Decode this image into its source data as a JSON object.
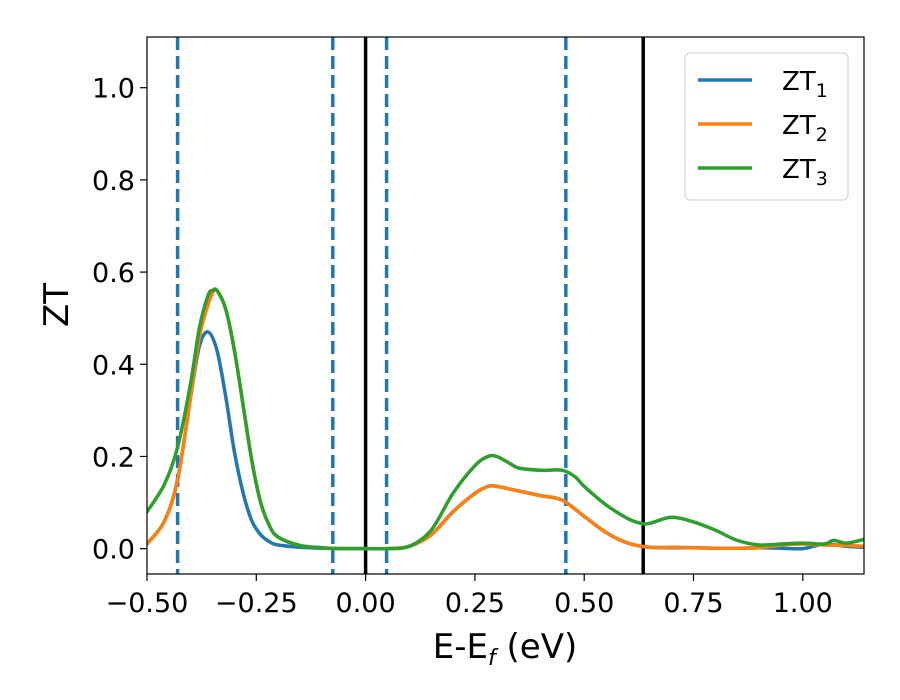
{
  "chart_data": {
    "type": "line",
    "xlabel": "E-E",
    "xlabel_sub": "f",
    "xlabel_unit": " (eV)",
    "ylabel": "ZT",
    "xlim": [
      -0.5,
      1.14
    ],
    "ylim": [
      -0.055,
      1.11
    ],
    "xticks": [
      -0.5,
      -0.25,
      0.0,
      0.25,
      0.5,
      0.75,
      1.0
    ],
    "xtick_labels": [
      "−0.50",
      "−0.25",
      "0.00",
      "0.25",
      "0.50",
      "0.75",
      "1.00"
    ],
    "yticks": [
      0.0,
      0.2,
      0.4,
      0.6,
      0.8,
      1.0
    ],
    "ytick_labels": [
      "0.0",
      "0.2",
      "0.4",
      "0.6",
      "0.8",
      "1.0"
    ],
    "legend_position": "top-right",
    "vlines_solid": [
      0.0,
      0.635
    ],
    "vlines_dashed": [
      -0.43,
      -0.075,
      0.048,
      0.458
    ],
    "series": [
      {
        "name": "ZT",
        "sub": "1",
        "color": "#1f77b4",
        "x": [
          -0.5,
          -0.46,
          -0.43,
          -0.4,
          -0.38,
          -0.36,
          -0.34,
          -0.32,
          -0.3,
          -0.28,
          -0.26,
          -0.24,
          -0.22,
          -0.2,
          -0.15,
          -0.1,
          -0.05,
          0.0,
          0.05,
          0.1,
          0.15,
          0.2,
          0.25,
          0.28,
          0.3,
          0.35,
          0.4,
          0.45,
          0.5,
          0.55,
          0.6,
          0.65,
          0.7,
          0.75,
          0.8,
          0.85,
          0.9,
          0.95,
          1.0,
          1.05,
          1.1,
          1.14
        ],
        "y": [
          0.01,
          0.06,
          0.15,
          0.33,
          0.44,
          0.47,
          0.43,
          0.33,
          0.21,
          0.12,
          0.06,
          0.03,
          0.015,
          0.008,
          0.003,
          0.001,
          0.0,
          0.0,
          0.0,
          0.005,
          0.03,
          0.08,
          0.12,
          0.135,
          0.135,
          0.125,
          0.115,
          0.105,
          0.07,
          0.035,
          0.012,
          0.003,
          0.002,
          0.002,
          0.001,
          0.001,
          0.002,
          0.001,
          0.0,
          0.01,
          0.005,
          0.003
        ]
      },
      {
        "name": "ZT",
        "sub": "2",
        "color": "#ff7f0e",
        "x": [
          -0.5,
          -0.46,
          -0.43,
          -0.4,
          -0.38,
          -0.36,
          -0.35,
          -0.34,
          -0.32,
          -0.3,
          -0.28,
          -0.26,
          -0.24,
          -0.22,
          -0.2,
          -0.15,
          -0.1,
          -0.05,
          0.0,
          0.05,
          0.1,
          0.15,
          0.2,
          0.25,
          0.28,
          0.3,
          0.35,
          0.4,
          0.45,
          0.5,
          0.55,
          0.6,
          0.65,
          0.7,
          0.75,
          0.8,
          0.85,
          0.9,
          0.95,
          1.0,
          1.05,
          1.1,
          1.14
        ],
        "y": [
          0.01,
          0.06,
          0.15,
          0.33,
          0.46,
          0.53,
          0.555,
          0.56,
          0.52,
          0.43,
          0.31,
          0.19,
          0.1,
          0.05,
          0.025,
          0.007,
          0.002,
          0.0,
          0.0,
          0.0,
          0.005,
          0.03,
          0.08,
          0.12,
          0.135,
          0.135,
          0.125,
          0.115,
          0.105,
          0.07,
          0.035,
          0.012,
          0.003,
          0.003,
          0.002,
          0.001,
          0.001,
          0.002,
          0.008,
          0.01,
          0.008,
          0.007,
          0.005
        ]
      },
      {
        "name": "ZT",
        "sub": "3",
        "color": "#2ca02c",
        "x": [
          -0.5,
          -0.46,
          -0.43,
          -0.4,
          -0.38,
          -0.36,
          -0.35,
          -0.34,
          -0.32,
          -0.3,
          -0.28,
          -0.26,
          -0.24,
          -0.22,
          -0.2,
          -0.15,
          -0.1,
          -0.05,
          0.0,
          0.05,
          0.1,
          0.15,
          0.2,
          0.25,
          0.28,
          0.3,
          0.33,
          0.35,
          0.4,
          0.45,
          0.48,
          0.5,
          0.55,
          0.6,
          0.63,
          0.65,
          0.7,
          0.75,
          0.8,
          0.85,
          0.9,
          0.95,
          1.0,
          1.05,
          1.07,
          1.1,
          1.14
        ],
        "y": [
          0.08,
          0.14,
          0.22,
          0.36,
          0.48,
          0.55,
          0.56,
          0.56,
          0.52,
          0.43,
          0.31,
          0.19,
          0.1,
          0.05,
          0.025,
          0.007,
          0.002,
          0.0,
          0.0,
          0.0,
          0.005,
          0.04,
          0.12,
          0.18,
          0.2,
          0.2,
          0.185,
          0.175,
          0.17,
          0.17,
          0.155,
          0.135,
          0.095,
          0.065,
          0.055,
          0.055,
          0.068,
          0.058,
          0.04,
          0.018,
          0.008,
          0.01,
          0.012,
          0.01,
          0.018,
          0.012,
          0.02
        ]
      }
    ]
  }
}
